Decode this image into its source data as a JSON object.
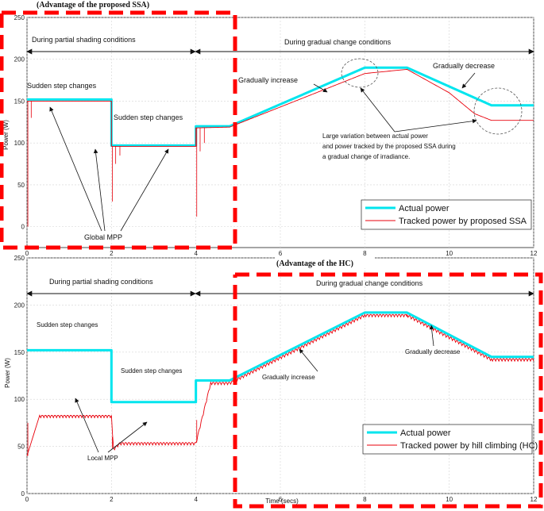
{
  "chart_data": [
    {
      "type": "line",
      "title": "(Advantage of the proposed SSA)",
      "xlabel": "",
      "ylabel": "Power (W)",
      "xlim": [
        0,
        12
      ],
      "ylim": [
        -25,
        250
      ],
      "yticks": [
        0,
        50,
        100,
        150,
        200,
        250
      ],
      "xticks": [
        0,
        2,
        4,
        6,
        8,
        10,
        12
      ],
      "grid": true,
      "legend_position": "bottom-right",
      "series": [
        {
          "name": "Actual power",
          "color": "#00e5ee",
          "x": [
            0,
            2,
            2,
            4,
            4,
            4.8,
            8,
            9,
            11,
            12
          ],
          "y": [
            152,
            152,
            97,
            97,
            120,
            120,
            190,
            190,
            145,
            145
          ]
        },
        {
          "name": "Tracked power by proposed SSA",
          "color": "#e8000b",
          "x": [
            0,
            2,
            2,
            4,
            4,
            4.8,
            8,
            9,
            10,
            10.6,
            11,
            12
          ],
          "y": [
            150,
            150,
            96,
            96,
            118,
            119,
            183,
            188,
            160,
            135,
            127,
            127
          ]
        }
      ],
      "annotations": {
        "section_left": "During partial shading conditions",
        "section_right": "During gradual change conditions",
        "sudden_left": "Sudden step changes",
        "sudden_mid": "Sudden step changes",
        "grad_inc": "Gradually increase",
        "grad_dec": "Gradually decrease",
        "large_var": [
          "Large variation between actual power",
          "and power tracked by the proposed SSA during",
          "a gradual change of irradiance."
        ],
        "global_mpp": "Global MPP"
      }
    },
    {
      "type": "line",
      "title": "(Advantage of the HC)",
      "xlabel": "Time (secs)",
      "ylabel": "Power (W)",
      "xlim": [
        0,
        12
      ],
      "ylim": [
        0,
        250
      ],
      "yticks": [
        0,
        50,
        100,
        150,
        200,
        250
      ],
      "xticks": [
        0,
        2,
        4,
        6,
        8,
        10,
        12
      ],
      "grid": true,
      "legend_position": "bottom-right",
      "series": [
        {
          "name": "Actual power",
          "color": "#00e5ee",
          "x": [
            0,
            2,
            2,
            4,
            4,
            4.8,
            8,
            9,
            11,
            12
          ],
          "y": [
            152,
            152,
            97,
            97,
            120,
            120,
            192,
            192,
            145,
            145
          ]
        },
        {
          "name": "Tracked power by hill climbing (HC)",
          "color": "#e8000b",
          "x": [
            0,
            0.3,
            2,
            2.05,
            2.2,
            4,
            4.35,
            4.8,
            8,
            9,
            11,
            12
          ],
          "y": [
            40,
            83,
            83,
            48,
            54,
            54,
            118,
            118,
            190,
            190,
            143,
            143
          ]
        }
      ],
      "annotations": {
        "section_left": "During partial shading conditions",
        "section_right": "During gradual change conditions",
        "sudden_left": "Sudden step changes",
        "sudden_mid": "Sudden step changes",
        "grad_inc": "Gradually increase",
        "grad_dec": "Gradually decrease",
        "local_mpp": "Local MPP"
      }
    }
  ]
}
